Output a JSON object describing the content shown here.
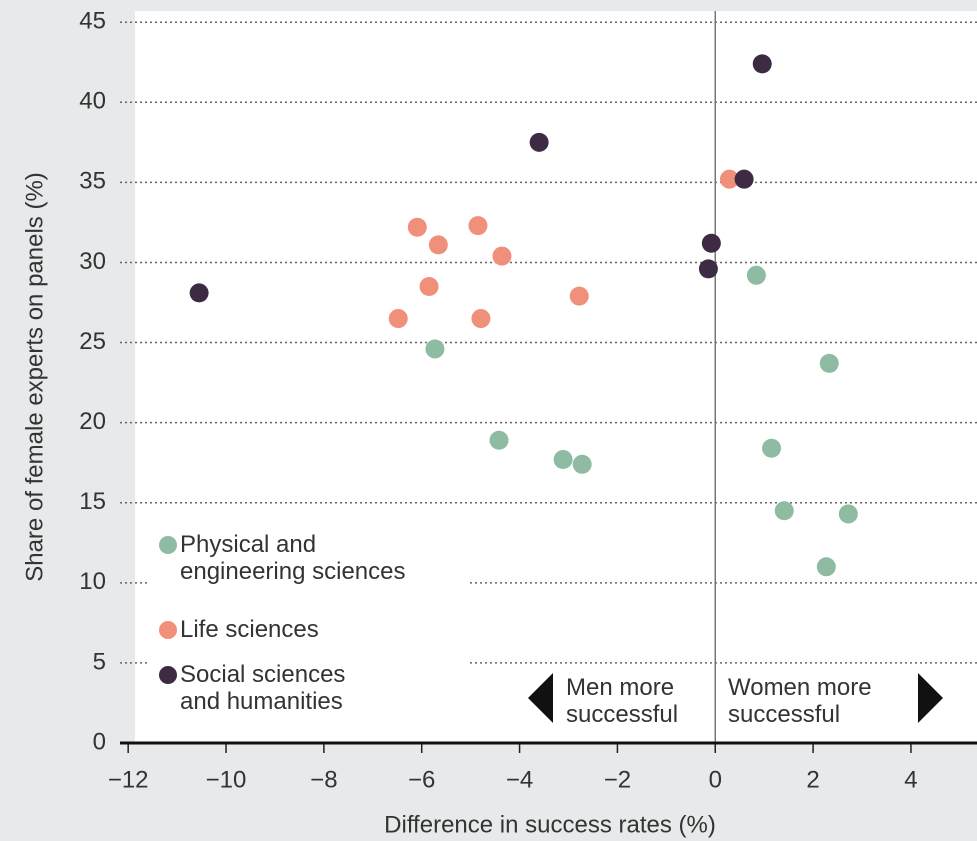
{
  "chart_data": {
    "type": "scatter",
    "x_label": "Difference in success rates (%)",
    "y_label": "Share of female experts on panels (%)",
    "xlim": [
      -12.3,
      5.35
    ],
    "ylim": [
      0,
      45.7
    ],
    "xticks": [
      {
        "value": -12,
        "label": "−12"
      },
      {
        "value": -10,
        "label": "−10"
      },
      {
        "value": -8,
        "label": "−8"
      },
      {
        "value": -6,
        "label": "−6"
      },
      {
        "value": -4,
        "label": "−4"
      },
      {
        "value": -2,
        "label": "−2"
      },
      0,
      2,
      4
    ],
    "yticks": [
      0,
      5,
      10,
      15,
      20,
      25,
      30,
      35,
      40,
      45
    ],
    "grid": true,
    "legend": "lower left",
    "annotations": [
      "Men more\nsuccessful",
      "Women more\nsuccessful"
    ],
    "series": [
      {
        "name": "Physical and\nengineering sciences",
        "color": "#8fbba3",
        "x": [
          -5.73,
          -4.42,
          -3.11,
          -2.72,
          0.84,
          2.33,
          1.15,
          1.41,
          2.72,
          2.27
        ],
        "values": [
          24.6,
          18.9,
          17.7,
          17.4,
          29.2,
          23.7,
          18.4,
          14.5,
          14.3,
          11.0
        ]
      },
      {
        "name": "Life sciences",
        "color": "#f0907b",
        "x": [
          -6.09,
          -5.66,
          -4.85,
          -4.36,
          -5.85,
          -6.48,
          -4.79,
          -2.78,
          0.29
        ],
        "values": [
          32.2,
          31.1,
          32.3,
          30.4,
          28.5,
          26.5,
          26.5,
          27.9,
          35.2
        ]
      },
      {
        "name": "Social sciences\nand humanities",
        "color": "#3d2a43",
        "x": [
          -10.55,
          -3.6,
          0.96,
          0.59,
          -0.08,
          -0.14
        ],
        "values": [
          28.1,
          37.5,
          42.4,
          35.2,
          31.2,
          29.6
        ]
      }
    ]
  }
}
